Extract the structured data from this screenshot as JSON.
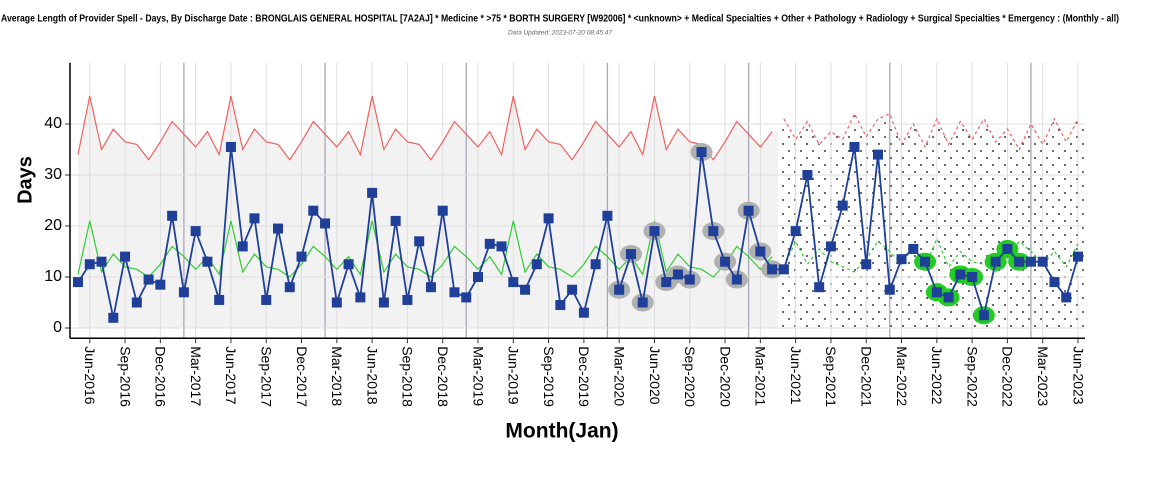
{
  "chart_data": {
    "type": "spc",
    "title": "Average Length of Provider Spell - Days, By Discharge Date : BRONGLAIS GENERAL HOSPITAL [7A2AJ] * Medicine * >75 * BORTH SURGERY [W92006] * <unknown> + Medical Specialties + Other + Pathology + Radiology + Surgical Specialties * Emergency : (Monthly - all)",
    "subtitle": "Data Updated: 2023-07-20 08:45:47",
    "x_label": "Month(Jan)",
    "y_label": "Days",
    "ylim": [
      -2,
      52
    ],
    "yticks": [
      0,
      10,
      20,
      30,
      40
    ],
    "grid": true,
    "categories": [
      null,
      "Jun-2016",
      null,
      null,
      "Sep-2016",
      null,
      null,
      "Dec-2016",
      null,
      null,
      "Mar-2017",
      null,
      null,
      "Jun-2017",
      null,
      null,
      "Sep-2017",
      null,
      null,
      "Dec-2017",
      null,
      null,
      "Mar-2018",
      null,
      null,
      "Jun-2018",
      null,
      null,
      "Sep-2018",
      null,
      null,
      "Dec-2018",
      null,
      null,
      "Mar-2019",
      null,
      null,
      "Jun-2019",
      null,
      null,
      "Sep-2019",
      null,
      null,
      "Dec-2019",
      null,
      null,
      "Mar-2020",
      null,
      null,
      "Jun-2020",
      null,
      null,
      "Sep-2020",
      null,
      null,
      "Dec-2020",
      null,
      null,
      "Mar-2021",
      null,
      null,
      "Jun-2021",
      null,
      null,
      "Sep-2021",
      null,
      null,
      "Dec-2021",
      null,
      null,
      "Mar-2022",
      null,
      null,
      "Jun-2022",
      null,
      null,
      "Sep-2022",
      null,
      null,
      "Dec-2022",
      null,
      null,
      "Mar-2023",
      null,
      null,
      "Jun-2023"
    ],
    "series": [
      {
        "role": "upper-area",
        "color": "#f2f2f2",
        "line_color": "#f06060",
        "dash": false,
        "values": [
          34,
          45.5,
          35,
          39,
          36.5,
          36,
          33,
          36.5,
          40.5,
          38,
          35.5,
          38.5,
          34,
          45.5,
          35,
          39,
          36.5,
          36,
          33,
          36.5,
          40.5,
          38,
          35.5,
          38.5,
          34,
          45.5,
          35,
          39,
          36.5,
          36,
          33,
          36.5,
          40.5,
          38,
          35.5,
          38.5,
          34,
          45.5,
          35,
          39,
          36.5,
          36,
          33,
          36.5,
          40.5,
          38,
          35.5,
          38.5,
          34,
          45.5,
          35,
          39,
          36.5,
          36,
          33,
          36.5,
          40.5,
          38,
          35.5,
          38.5,
          null,
          null,
          null,
          null,
          null,
          null,
          null,
          null,
          null,
          null,
          null,
          null,
          null,
          null,
          null,
          null,
          null,
          null,
          null,
          null,
          null,
          null,
          null,
          null,
          null,
          null
        ]
      },
      {
        "role": "upper-forecast",
        "color": "#f06060",
        "dash": true,
        "values": [
          null,
          null,
          null,
          null,
          null,
          null,
          null,
          null,
          null,
          null,
          null,
          null,
          null,
          null,
          null,
          null,
          null,
          null,
          null,
          null,
          null,
          null,
          null,
          null,
          null,
          null,
          null,
          null,
          null,
          null,
          null,
          null,
          null,
          null,
          null,
          null,
          null,
          null,
          null,
          null,
          null,
          null,
          null,
          null,
          null,
          null,
          null,
          null,
          null,
          null,
          null,
          null,
          null,
          null,
          null,
          null,
          null,
          null,
          null,
          null,
          41,
          37,
          40.5,
          36,
          38.5,
          37,
          42,
          37.5,
          41,
          42,
          36,
          40,
          35.5,
          41,
          36,
          40.5,
          37,
          41,
          36.5,
          39,
          35,
          40,
          36,
          41,
          36.5,
          41
        ]
      },
      {
        "role": "mean",
        "color": "#33cc33",
        "dash": false,
        "values": [
          10.5,
          21,
          11,
          14.5,
          12,
          11.5,
          10,
          12.5,
          16,
          14,
          11.5,
          14,
          10.5,
          21,
          11,
          14.5,
          12,
          11.5,
          10,
          12.5,
          16,
          14,
          11.5,
          14,
          10.5,
          21,
          11,
          14.5,
          12,
          11.5,
          10,
          12.5,
          16,
          14,
          11.5,
          14,
          10.5,
          21,
          11,
          14.5,
          12,
          11.5,
          10,
          12.5,
          16,
          14,
          11.5,
          14,
          10.5,
          21,
          11,
          14.5,
          12,
          11.5,
          10,
          12.5,
          16,
          14,
          11.5,
          14,
          null,
          null,
          null,
          null,
          null,
          null,
          null,
          null,
          null,
          null,
          null,
          null,
          null,
          null,
          null,
          null,
          null,
          null,
          null,
          null,
          null,
          null,
          null,
          null,
          null,
          null
        ]
      },
      {
        "role": "mean-forecast",
        "color": "#33cc33",
        "dash": true,
        "values": [
          null,
          null,
          null,
          null,
          null,
          null,
          null,
          null,
          null,
          null,
          null,
          null,
          null,
          null,
          null,
          null,
          null,
          null,
          null,
          null,
          null,
          null,
          null,
          null,
          null,
          null,
          null,
          null,
          null,
          null,
          null,
          null,
          null,
          null,
          null,
          null,
          null,
          null,
          null,
          null,
          null,
          null,
          null,
          null,
          null,
          null,
          null,
          null,
          null,
          null,
          null,
          null,
          null,
          null,
          null,
          null,
          null,
          null,
          null,
          null,
          12,
          17,
          12.5,
          15.5,
          13,
          12,
          11,
          13.5,
          17,
          15,
          12.5,
          16,
          12,
          17.5,
          12,
          15,
          13,
          12.5,
          11,
          13.5,
          17,
          15,
          12.5,
          15,
          12,
          16.5
        ]
      },
      {
        "role": "highlight",
        "color": "#b0b0b0",
        "values": [
          null,
          null,
          null,
          null,
          null,
          null,
          null,
          null,
          null,
          null,
          null,
          null,
          null,
          null,
          null,
          null,
          null,
          null,
          null,
          null,
          null,
          null,
          null,
          null,
          null,
          null,
          null,
          null,
          null,
          null,
          null,
          null,
          null,
          null,
          null,
          null,
          null,
          null,
          null,
          null,
          null,
          null,
          null,
          null,
          null,
          null,
          7.5,
          14.5,
          5,
          19,
          9,
          10.5,
          9.5,
          34.5,
          19,
          13,
          9.5,
          23,
          15,
          11.5,
          null,
          null,
          null,
          null,
          null,
          null,
          null,
          null,
          null,
          null,
          null,
          null,
          null,
          null,
          null,
          null,
          null,
          null,
          null,
          null,
          null,
          null,
          null,
          null,
          null,
          null
        ]
      },
      {
        "role": "highlight",
        "color": "#22cc22",
        "values": [
          null,
          null,
          null,
          null,
          null,
          null,
          null,
          null,
          null,
          null,
          null,
          null,
          null,
          null,
          null,
          null,
          null,
          null,
          null,
          null,
          null,
          null,
          null,
          null,
          null,
          null,
          null,
          null,
          null,
          null,
          null,
          null,
          null,
          null,
          null,
          null,
          null,
          null,
          null,
          null,
          null,
          null,
          null,
          null,
          null,
          null,
          null,
          null,
          null,
          null,
          null,
          null,
          null,
          null,
          null,
          null,
          null,
          null,
          null,
          null,
          null,
          null,
          null,
          null,
          null,
          null,
          null,
          null,
          null,
          null,
          null,
          null,
          13,
          7,
          6,
          10.5,
          10,
          2.5,
          13,
          15.5,
          13,
          null,
          null,
          null,
          null,
          null
        ]
      },
      {
        "role": "data",
        "color": "#1f3f99",
        "values": [
          9,
          12.5,
          13,
          2,
          14,
          5,
          9.5,
          8.5,
          22,
          7,
          19,
          13,
          5.5,
          35.5,
          16,
          21.5,
          5.5,
          19.5,
          8,
          14,
          23,
          20.5,
          5,
          12.5,
          6,
          26.5,
          5,
          21,
          5.5,
          17,
          8,
          23,
          7,
          6,
          10,
          16.5,
          16,
          9,
          7.5,
          12.5,
          21.5,
          4.5,
          7.5,
          3,
          12.5,
          22,
          7.5,
          14.5,
          5,
          19,
          9,
          10.5,
          9.5,
          34.5,
          19,
          13,
          9.5,
          23,
          15,
          11.5,
          11.5,
          19,
          30,
          8,
          16,
          24,
          35.5,
          12.5,
          34,
          7.5,
          13.5,
          15.5,
          13,
          7,
          6,
          10.5,
          10,
          2.5,
          13,
          15.5,
          13,
          13,
          13,
          9,
          6,
          14
        ]
      }
    ]
  }
}
